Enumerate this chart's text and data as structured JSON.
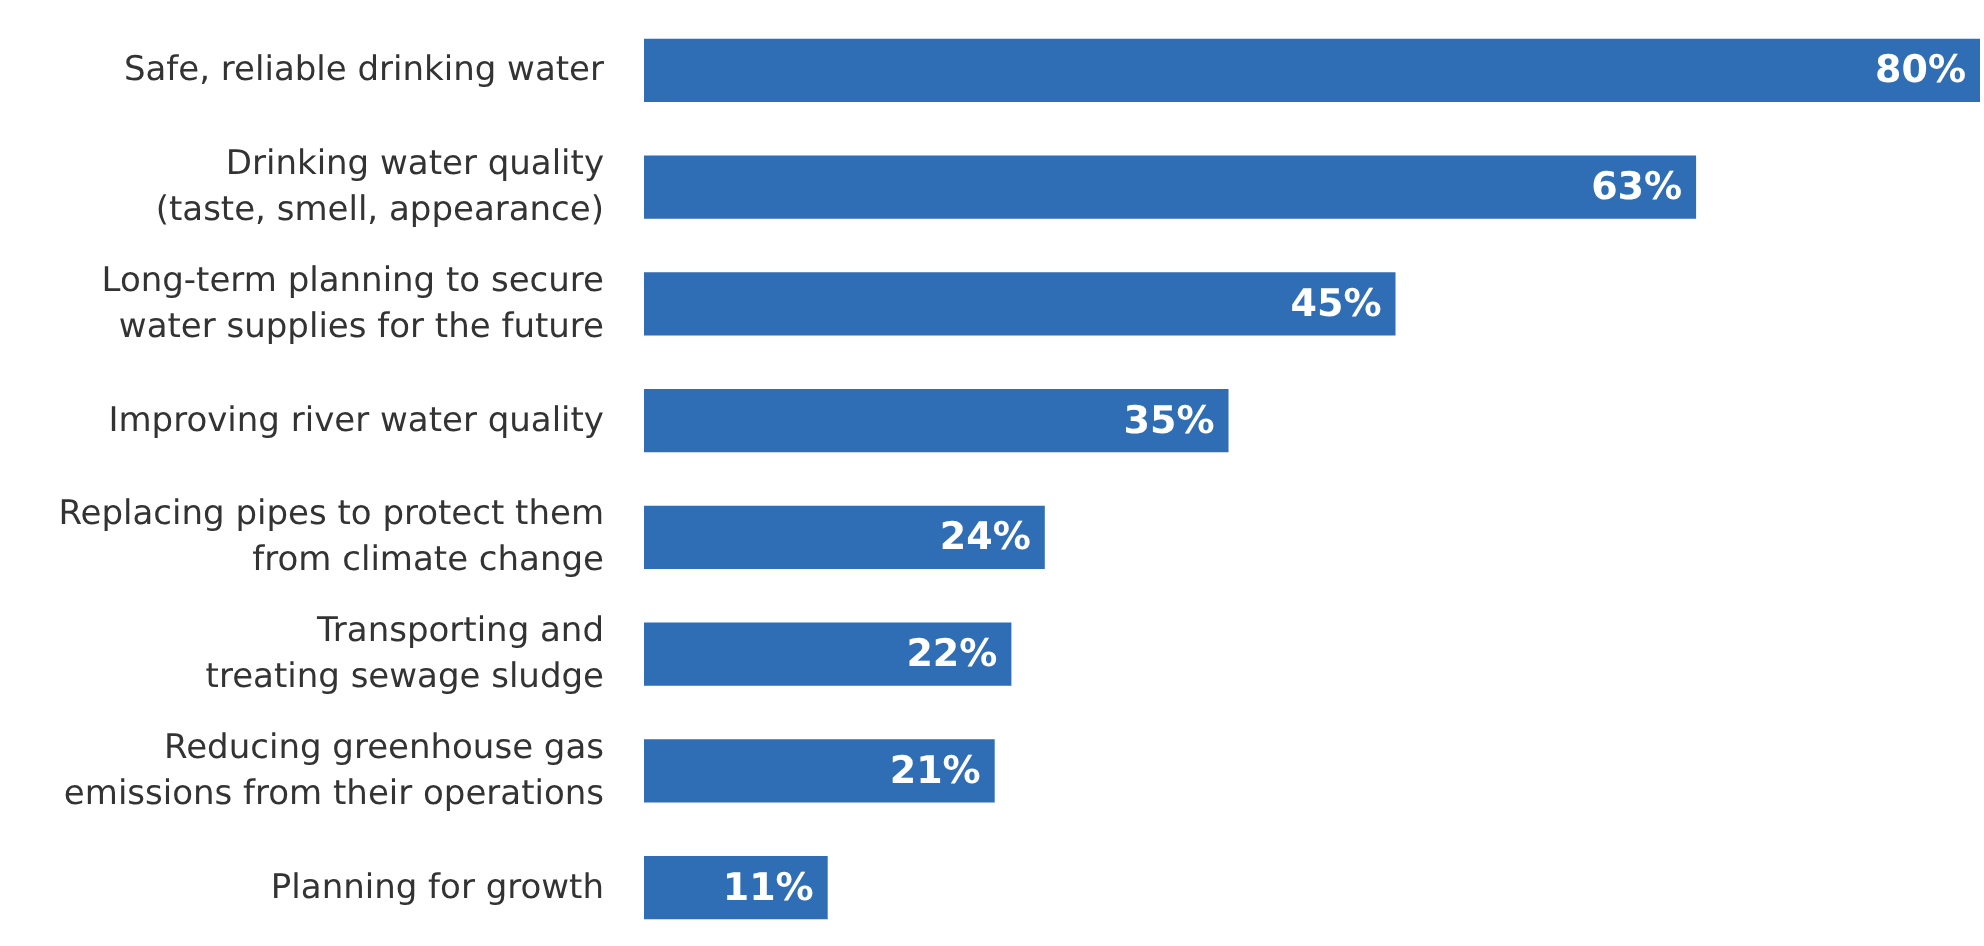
{
  "chart_data": {
    "type": "bar",
    "orientation": "horizontal",
    "categories": [
      "Safe, reliable drinking water",
      "Drinking water quality\n(taste, smell, appearance)",
      "Long-term planning to secure\nwater supplies for the future",
      "Improving river water quality",
      "Replacing pipes to protect them\nfrom climate change",
      "Transporting and\ntreating sewage sludge",
      "Reducing greenhouse gas\nemissions from their operations",
      "Planning for growth"
    ],
    "values": [
      80,
      63,
      45,
      35,
      24,
      22,
      21,
      11
    ],
    "value_labels": [
      "80%",
      "63%",
      "45%",
      "35%",
      "24%",
      "22%",
      "21%",
      "11%"
    ],
    "color": "#2f6db5"
  }
}
